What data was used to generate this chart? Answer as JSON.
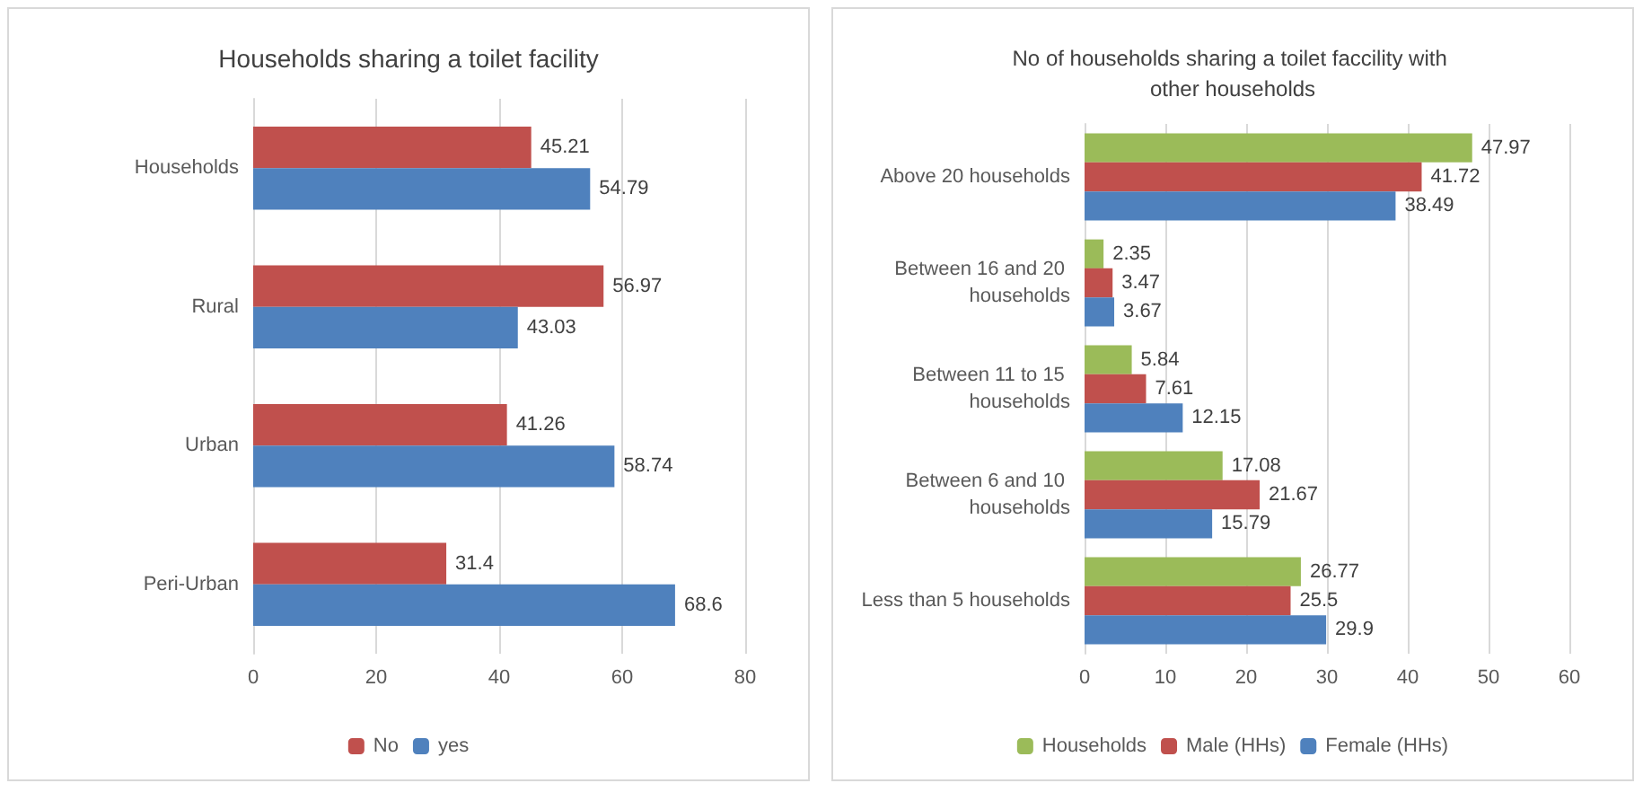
{
  "chart_data": [
    {
      "type": "bar",
      "orientation": "horizontal",
      "title": "Households sharing a toilet facility",
      "categories": [
        "Households",
        "Rural",
        "Urban",
        "Peri-Urban"
      ],
      "series": [
        {
          "name": "No",
          "color": "#c0504d",
          "values": [
            45.21,
            56.97,
            41.26,
            31.4
          ]
        },
        {
          "name": "yes",
          "color": "#4f81bd",
          "values": [
            54.79,
            43.03,
            58.74,
            68.6
          ]
        }
      ],
      "xlim": [
        0,
        80
      ],
      "xticks": [
        0,
        20,
        40,
        60,
        80
      ],
      "grid": "x",
      "legend": "bottom",
      "data_labels": true
    },
    {
      "type": "bar",
      "orientation": "horizontal",
      "title": "No of households sharing a toilet faccility with other households",
      "categories": [
        "Above 20 households",
        "Between 16 and 20 households",
        "Between 11 to 15 households",
        "Between 6 and 10 households",
        "Less than 5 households"
      ],
      "series": [
        {
          "name": "Households",
          "color": "#9bbb59",
          "values": [
            47.97,
            2.35,
            5.84,
            17.08,
            26.77
          ]
        },
        {
          "name": "Male (HHs)",
          "color": "#c0504d",
          "values": [
            41.72,
            3.47,
            7.61,
            21.67,
            25.5
          ]
        },
        {
          "name": "Female (HHs)",
          "color": "#4f81bd",
          "values": [
            38.49,
            3.67,
            12.15,
            15.79,
            29.9
          ]
        }
      ],
      "xlim": [
        0,
        60
      ],
      "xticks": [
        0,
        10,
        20,
        30,
        40,
        50,
        60
      ],
      "grid": "x",
      "legend": "bottom",
      "data_labels": true
    }
  ]
}
